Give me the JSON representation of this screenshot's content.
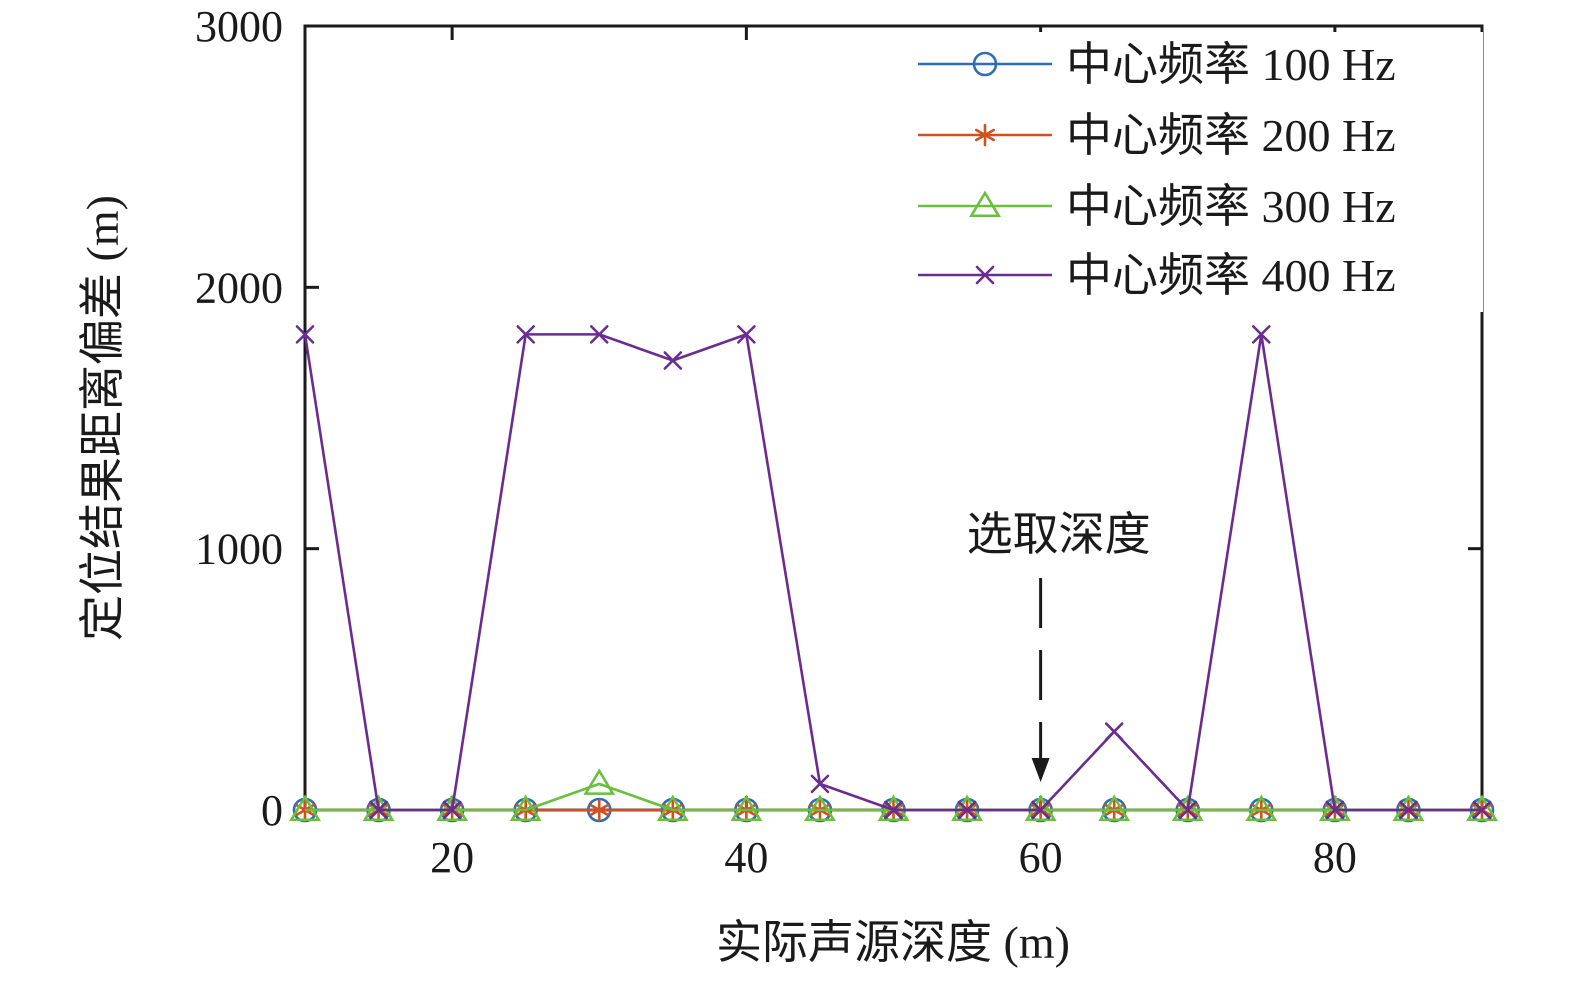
{
  "chart_data": {
    "type": "line",
    "title": "",
    "xlabel": "实际声源深度 (m)",
    "ylabel": "定位结果距离偏差 (m)",
    "xlim": [
      10,
      90
    ],
    "ylim": [
      0,
      3000
    ],
    "xticks": [
      20,
      40,
      60,
      80
    ],
    "yticks": [
      0,
      1000,
      2000,
      3000
    ],
    "grid": false,
    "legend_position": "top-right",
    "x": [
      10,
      15,
      20,
      25,
      30,
      35,
      40,
      45,
      50,
      55,
      60,
      65,
      70,
      75,
      80,
      85,
      90
    ],
    "series": [
      {
        "name": "中心频率 100 Hz",
        "marker": "circle",
        "color": "#2f6db5",
        "values": [
          0,
          0,
          0,
          0,
          0,
          0,
          0,
          0,
          0,
          0,
          0,
          0,
          0,
          0,
          0,
          0,
          0
        ]
      },
      {
        "name": "中心频率 200 Hz",
        "marker": "asterisk",
        "color": "#d2501e",
        "values": [
          0,
          0,
          0,
          0,
          0,
          0,
          0,
          0,
          0,
          0,
          0,
          0,
          0,
          0,
          0,
          0,
          0
        ]
      },
      {
        "name": "中心频率 300 Hz",
        "marker": "triangle",
        "color": "#6abf3e",
        "values": [
          0,
          0,
          0,
          0,
          100,
          0,
          0,
          0,
          0,
          0,
          0,
          0,
          0,
          0,
          0,
          0,
          0
        ]
      },
      {
        "name": "中心频率 400 Hz",
        "marker": "x",
        "color": "#6a2d8f",
        "values": [
          1820,
          0,
          0,
          1820,
          1820,
          1720,
          1820,
          100,
          0,
          0,
          0,
          300,
          0,
          1820,
          0,
          0,
          0
        ]
      }
    ],
    "annotations": [
      {
        "text": "选取深度",
        "x": 60,
        "y": 0,
        "style": "dashed-arrow-down"
      }
    ]
  }
}
